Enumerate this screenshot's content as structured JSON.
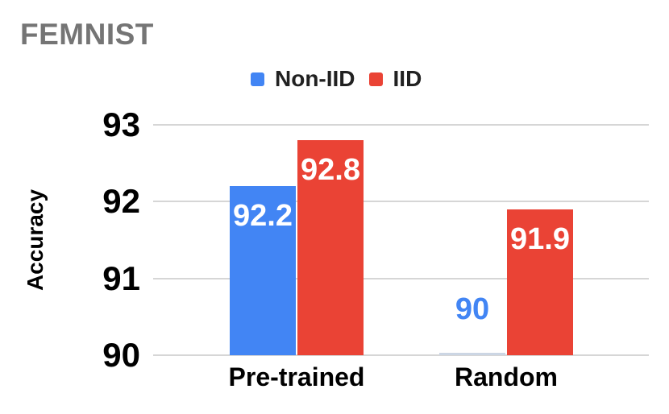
{
  "title": "FEMNIST",
  "colors": {
    "non_iid_blue": "#4285F4",
    "iid_red": "#EA4335",
    "title_gray": "#757575",
    "gridline_gray": "#d6d6d6",
    "axis_text_black": "#000000",
    "legend_text_dark": "#212121",
    "bar_label_white": "#ffffff"
  },
  "legend": {
    "items": [
      {
        "label": "Non-IID",
        "swatch": "blue-square-icon",
        "color": "#4285F4"
      },
      {
        "label": "IID",
        "swatch": "red-square-icon",
        "color": "#EA4335"
      }
    ]
  },
  "chart_data": {
    "type": "bar",
    "title": "FEMNIST",
    "categories": [
      "Pre-trained",
      "Random"
    ],
    "series": [
      {
        "name": "Non-IID",
        "color": "#4285F4",
        "values": [
          92.2,
          90
        ],
        "labels": [
          "92.2",
          "90"
        ]
      },
      {
        "name": "IID",
        "color": "#EA4335",
        "values": [
          92.8,
          91.9
        ],
        "labels": [
          "92.8",
          "91.9"
        ]
      }
    ],
    "xlabel": "",
    "ylabel": "Accuracy",
    "ylim": [
      90,
      93
    ],
    "yticks": [
      90,
      91,
      92,
      93
    ],
    "grid": true,
    "legend_position": "top"
  }
}
